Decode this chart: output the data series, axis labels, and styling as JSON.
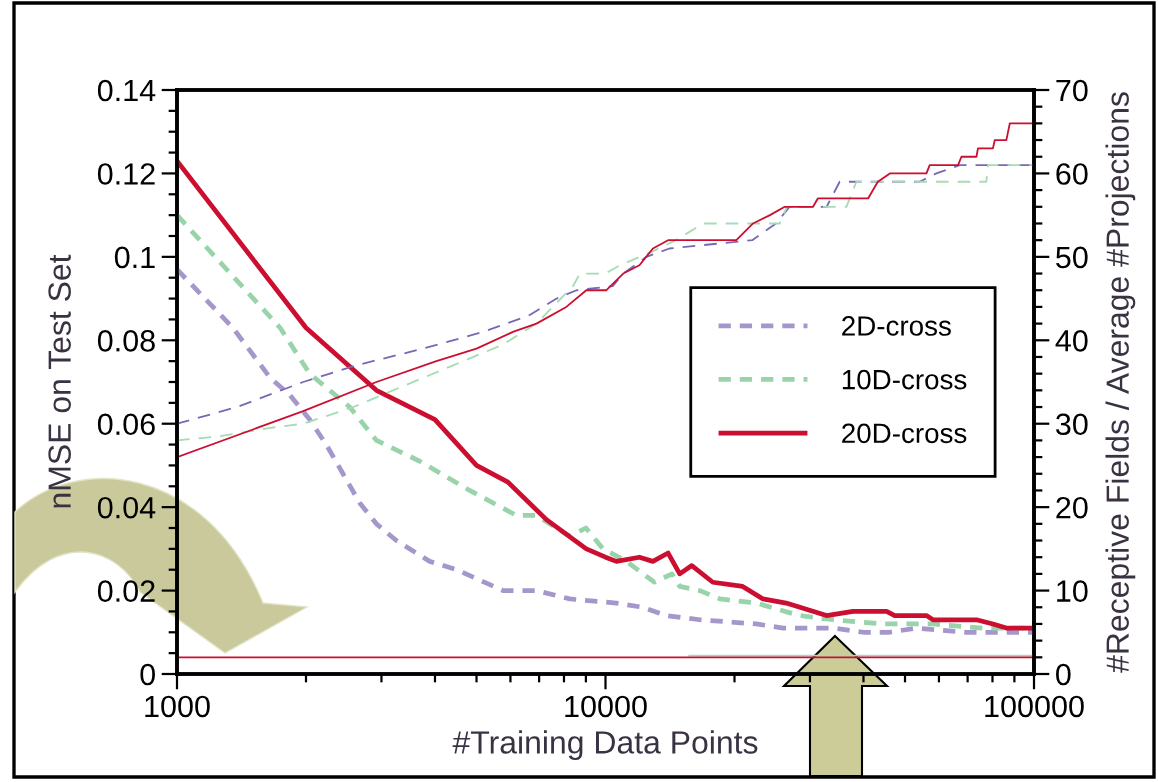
{
  "chart_data": {
    "type": "line",
    "xlabel": "#Training Data Points",
    "ylabel": "nMSE on Test Set",
    "y2label": "#Receptive Fields / Average #Projections",
    "log": "x",
    "grid": false,
    "legend": "center right",
    "xlim": [
      1000,
      100000
    ],
    "xticks": [
      1000,
      {
        "value": 2000,
        "label": null
      },
      {
        "value": 3000,
        "label": null
      },
      {
        "value": 4000,
        "label": null
      },
      {
        "value": 5000,
        "label": null
      },
      {
        "value": 6000,
        "label": null
      },
      {
        "value": 7000,
        "label": null
      },
      {
        "value": 8000,
        "label": null
      },
      {
        "value": 9000,
        "label": null
      },
      10000,
      {
        "value": 20000,
        "label": null
      },
      {
        "value": 30000,
        "label": null
      },
      {
        "value": 40000,
        "label": null
      },
      {
        "value": 50000,
        "label": null
      },
      {
        "value": 60000,
        "label": null
      },
      {
        "value": 70000,
        "label": null
      },
      {
        "value": 80000,
        "label": null
      },
      {
        "value": 90000,
        "label": null
      },
      100000
    ],
    "ylim": [
      0,
      0.14
    ],
    "yticks": [
      0,
      {
        "value": 0.005,
        "label": null
      },
      {
        "value": 0.01,
        "label": null
      },
      {
        "value": 0.015,
        "label": null
      },
      0.02,
      {
        "value": 0.025,
        "label": null
      },
      {
        "value": 0.03,
        "label": null
      },
      {
        "value": 0.035,
        "label": null
      },
      0.04,
      {
        "value": 0.045,
        "label": null
      },
      {
        "value": 0.05,
        "label": null
      },
      {
        "value": 0.055,
        "label": null
      },
      0.06,
      {
        "value": 0.065,
        "label": null
      },
      {
        "value": 0.07,
        "label": null
      },
      {
        "value": 0.075,
        "label": null
      },
      0.08,
      {
        "value": 0.085,
        "label": null
      },
      {
        "value": 0.09,
        "label": null
      },
      {
        "value": 0.095,
        "label": null
      },
      0.1,
      {
        "value": 0.105,
        "label": null
      },
      {
        "value": 0.11,
        "label": null
      },
      {
        "value": 0.115,
        "label": null
      },
      0.12,
      {
        "value": 0.125,
        "label": null
      },
      {
        "value": 0.13,
        "label": null
      },
      {
        "value": 0.135,
        "label": null
      },
      0.14
    ],
    "y2lim": [
      0,
      70
    ],
    "y2ticks": [
      0,
      {
        "value": 2,
        "label": null
      },
      {
        "value": 4,
        "label": null
      },
      {
        "value": 6,
        "label": null
      },
      {
        "value": 8,
        "label": null
      },
      10,
      {
        "value": 12,
        "label": null
      },
      {
        "value": 14,
        "label": null
      },
      {
        "value": 16,
        "label": null
      },
      {
        "value": 18,
        "label": null
      },
      20,
      {
        "value": 22,
        "label": null
      },
      {
        "value": 24,
        "label": null
      },
      {
        "value": 26,
        "label": null
      },
      {
        "value": 28,
        "label": null
      },
      30,
      {
        "value": 32,
        "label": null
      },
      {
        "value": 34,
        "label": null
      },
      {
        "value": 36,
        "label": null
      },
      {
        "value": 38,
        "label": null
      },
      40,
      {
        "value": 42,
        "label": null
      },
      {
        "value": 44,
        "label": null
      },
      {
        "value": 46,
        "label": null
      },
      {
        "value": 48,
        "label": null
      },
      50,
      {
        "value": 52,
        "label": null
      },
      {
        "value": 54,
        "label": null
      },
      {
        "value": 56,
        "label": null
      },
      {
        "value": 58,
        "label": null
      },
      60,
      {
        "value": 62,
        "label": null
      },
      {
        "value": 64,
        "label": null
      },
      {
        "value": 66,
        "label": null
      },
      {
        "value": 68,
        "label": null
      },
      70
    ],
    "series": [
      {
        "name": "2D-cross",
        "color": "#a597cb",
        "axis": "y",
        "line_style": "dashed",
        "x": [
          1000,
          1350,
          1650,
          1830,
          2040,
          2230,
          2440,
          2670,
          2920,
          3250,
          3890,
          4490,
          5770,
          6900,
          8250,
          10600,
          12200,
          13900,
          16600,
          22500,
          26000,
          34000,
          40000,
          46000,
          53000,
          69500,
          100000
        ],
        "values": [
          0.097,
          0.083,
          0.071,
          0.067,
          0.061,
          0.055,
          0.048,
          0.041,
          0.036,
          0.032,
          0.027,
          0.025,
          0.02,
          0.02,
          0.018,
          0.017,
          0.016,
          0.014,
          0.013,
          0.012,
          0.011,
          0.011,
          0.01,
          0.01,
          0.011,
          0.01,
          0.01
        ]
      },
      {
        "name": "10D-cross",
        "color": "#98d3a9",
        "axis": "y",
        "line_style": "dashed",
        "x": [
          1000,
          1740,
          2040,
          2530,
          2920,
          3690,
          4820,
          6200,
          6900,
          8250,
          9000,
          9870,
          11200,
          13000,
          14300,
          14900,
          16600,
          18500,
          22500,
          28400,
          34000,
          44400,
          58000,
          76000,
          100000
        ],
        "values": [
          0.11,
          0.083,
          0.072,
          0.064,
          0.056,
          0.051,
          0.044,
          0.038,
          0.038,
          0.033,
          0.035,
          0.03,
          0.027,
          0.022,
          0.024,
          0.021,
          0.02,
          0.018,
          0.017,
          0.014,
          0.013,
          0.012,
          0.012,
          0.011,
          0.011
        ]
      },
      {
        "name": "20D-cross",
        "color": "#cc0f31",
        "axis": "y",
        "line_style": "solid",
        "x": [
          1000,
          2000,
          2920,
          4000,
          5000,
          5920,
          7280,
          9020,
          10000,
          10600,
          12000,
          12900,
          14000,
          14900,
          15900,
          17800,
          20900,
          23300,
          26400,
          32800,
          37800,
          45300,
          47300,
          56100,
          58100,
          73400,
          80200,
          86200,
          100000
        ],
        "values": [
          0.123,
          0.083,
          0.068,
          0.061,
          0.05,
          0.046,
          0.037,
          0.03,
          0.028,
          0.027,
          0.028,
          0.027,
          0.029,
          0.024,
          0.026,
          0.022,
          0.021,
          0.018,
          0.017,
          0.014,
          0.015,
          0.015,
          0.014,
          0.014,
          0.013,
          0.013,
          0.012,
          0.011,
          0.011
        ]
      },
      {
        "color": "#7868b4",
        "axis": "y2",
        "line_style": "dashed",
        "x": [
          1000,
          1380,
          1970,
          2620,
          3750,
          5180,
          5870,
          6640,
          7690,
          8560,
          10400,
          11000,
          12460,
          14100,
          22000,
          25000,
          26900,
          32800,
          35200,
          54100,
          59200,
          67100,
          100000
        ],
        "values": [
          30,
          32,
          35,
          37,
          39,
          41,
          42,
          43,
          45,
          46,
          46.5,
          48,
          50,
          51,
          52,
          54,
          56,
          56,
          59,
          59,
          60,
          61,
          61
        ]
      },
      {
        "color": "#a6dbb3",
        "axis": "y2",
        "line_style": "dashed",
        "x": [
          1000,
          1260,
          1650,
          1970,
          2580,
          3370,
          4410,
          5770,
          6420,
          6900,
          8400,
          8710,
          10000,
          10800,
          12700,
          14600,
          16900,
          25500,
          26500,
          36500,
          38500,
          77400,
          78100,
          100000
        ],
        "values": [
          28,
          28.5,
          29.5,
          30,
          32,
          34.5,
          37,
          39.5,
          41,
          42,
          46.5,
          48,
          48,
          49,
          50.5,
          52,
          54,
          54,
          56,
          56,
          59,
          59,
          61,
          61
        ]
      },
      {
        "color": "#cc0f31",
        "axis": "y2",
        "line_style": "solid",
        "x": [
          1000,
          1970,
          2920,
          4030,
          5000,
          6080,
          6900,
          8100,
          9020,
          10050,
          11000,
          12000,
          12900,
          14000,
          20200,
          22100,
          24200,
          26200,
          30500,
          31300,
          41000,
          43200,
          46100,
          56100,
          57100,
          66500,
          67700,
          73400,
          74000,
          80200,
          81000,
          86200,
          87800,
          100000
        ],
        "values": [
          26,
          31.5,
          35,
          37.5,
          39,
          41,
          42,
          44,
          46,
          46,
          48,
          49,
          51,
          52,
          52,
          54,
          55,
          56,
          56,
          57,
          57,
          59,
          60,
          60,
          61,
          61,
          62,
          62,
          63,
          63,
          64,
          64,
          66,
          66
        ]
      },
      {
        "color": "#a6dbb3",
        "axis": "y2",
        "line_style": "solid",
        "x": [
          15600,
          100000
        ],
        "values": [
          2.2,
          2.2
        ]
      },
      {
        "color": "#cc0f31",
        "axis": "y2",
        "line_style": "solid",
        "x": [
          1000,
          100000
        ],
        "values": [
          2,
          2
        ]
      }
    ]
  }
}
